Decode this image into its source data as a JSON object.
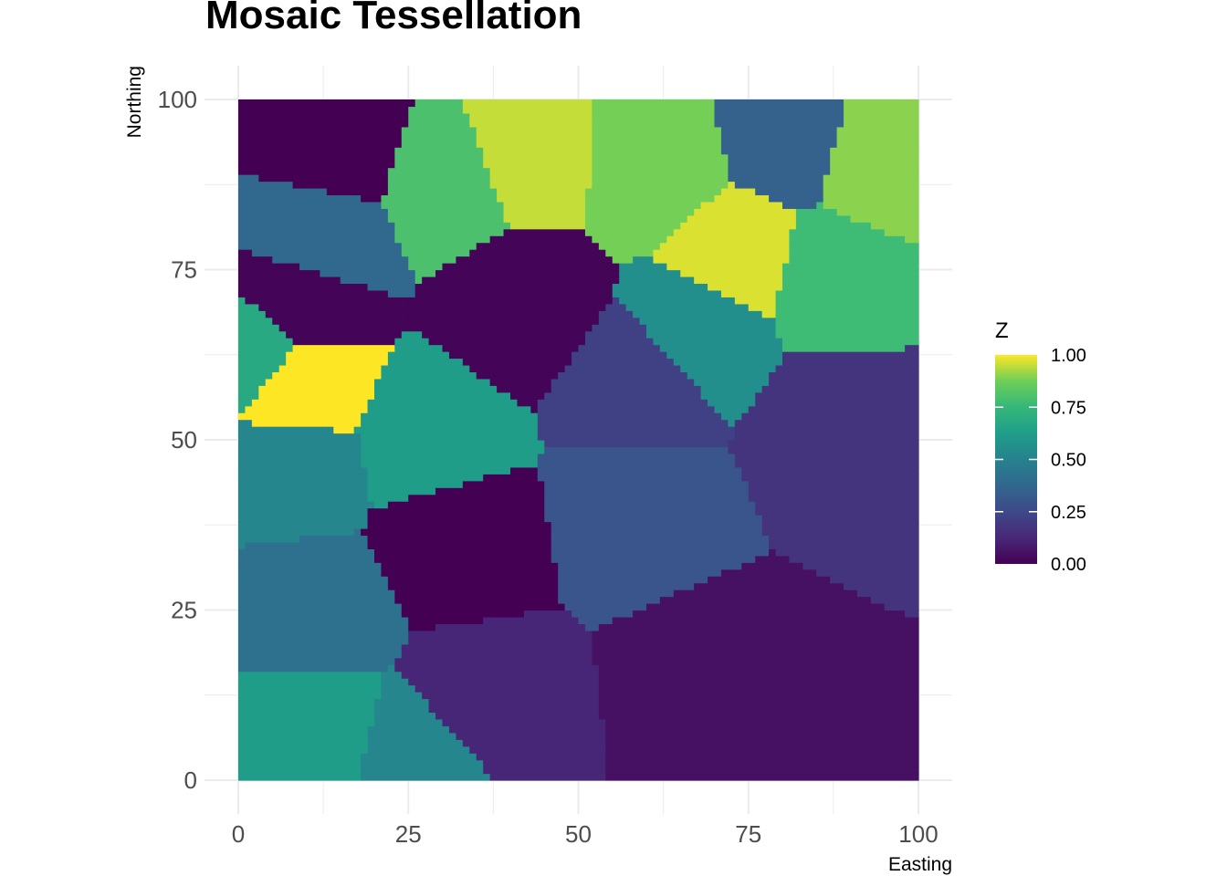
{
  "chart_data": {
    "type": "heatmap",
    "title": "Mosaic Tessellation",
    "xlabel": "Easting",
    "ylabel": "Northing",
    "xlim": [
      0,
      100
    ],
    "ylim": [
      0,
      100
    ],
    "xticks": [
      "0",
      "25",
      "50",
      "75",
      "100"
    ],
    "yticks": [
      "0",
      "25",
      "50",
      "75",
      "100"
    ],
    "grid": true,
    "legend": {
      "title": "Z",
      "placement": "right",
      "ticks": [
        "0.00",
        "0.25",
        "0.50",
        "0.75",
        "1.00"
      ],
      "range": [
        0,
        1
      ],
      "palette": "viridis"
    },
    "cells": [
      {
        "x": 14.6,
        "y": 93,
        "z": 0.0
      },
      {
        "x": 12,
        "y": 80,
        "z": 0.38
      },
      {
        "x": 9,
        "y": 70,
        "z": 0.01
      },
      {
        "x": 2.5,
        "y": 63,
        "z": 0.68
      },
      {
        "x": 9,
        "y": 58,
        "z": 1.0
      },
      {
        "x": 8,
        "y": 46,
        "z": 0.52
      },
      {
        "x": 28,
        "y": 50,
        "z": 0.62
      },
      {
        "x": 10.6,
        "y": 25,
        "z": 0.42
      },
      {
        "x": 10.6,
        "y": 7,
        "z": 0.62
      },
      {
        "x": 27,
        "y": 3,
        "z": 0.52
      },
      {
        "x": 36,
        "y": 11,
        "z": 0.12
      },
      {
        "x": 70,
        "y": 15,
        "z": 0.05
      },
      {
        "x": 88,
        "y": 52,
        "z": 0.17
      },
      {
        "x": 32,
        "y": 35.5,
        "z": 0.0
      },
      {
        "x": 59,
        "y": 40,
        "z": 0.3
      },
      {
        "x": 41.5,
        "y": 70,
        "z": 0.01
      },
      {
        "x": 59,
        "y": 58,
        "z": 0.22
      },
      {
        "x": 31,
        "y": 88,
        "z": 0.8
      },
      {
        "x": 42,
        "y": 92,
        "z": 0.95
      },
      {
        "x": 61.6,
        "y": 90.5,
        "z": 0.88
      },
      {
        "x": 81,
        "y": 94.5,
        "z": 0.35
      },
      {
        "x": 94,
        "y": 91,
        "z": 0.9
      },
      {
        "x": 73.7,
        "y": 77,
        "z": 0.97
      },
      {
        "x": 87,
        "y": 74,
        "z": 0.77
      },
      {
        "x": 68,
        "y": 66,
        "z": 0.56
      }
    ]
  }
}
